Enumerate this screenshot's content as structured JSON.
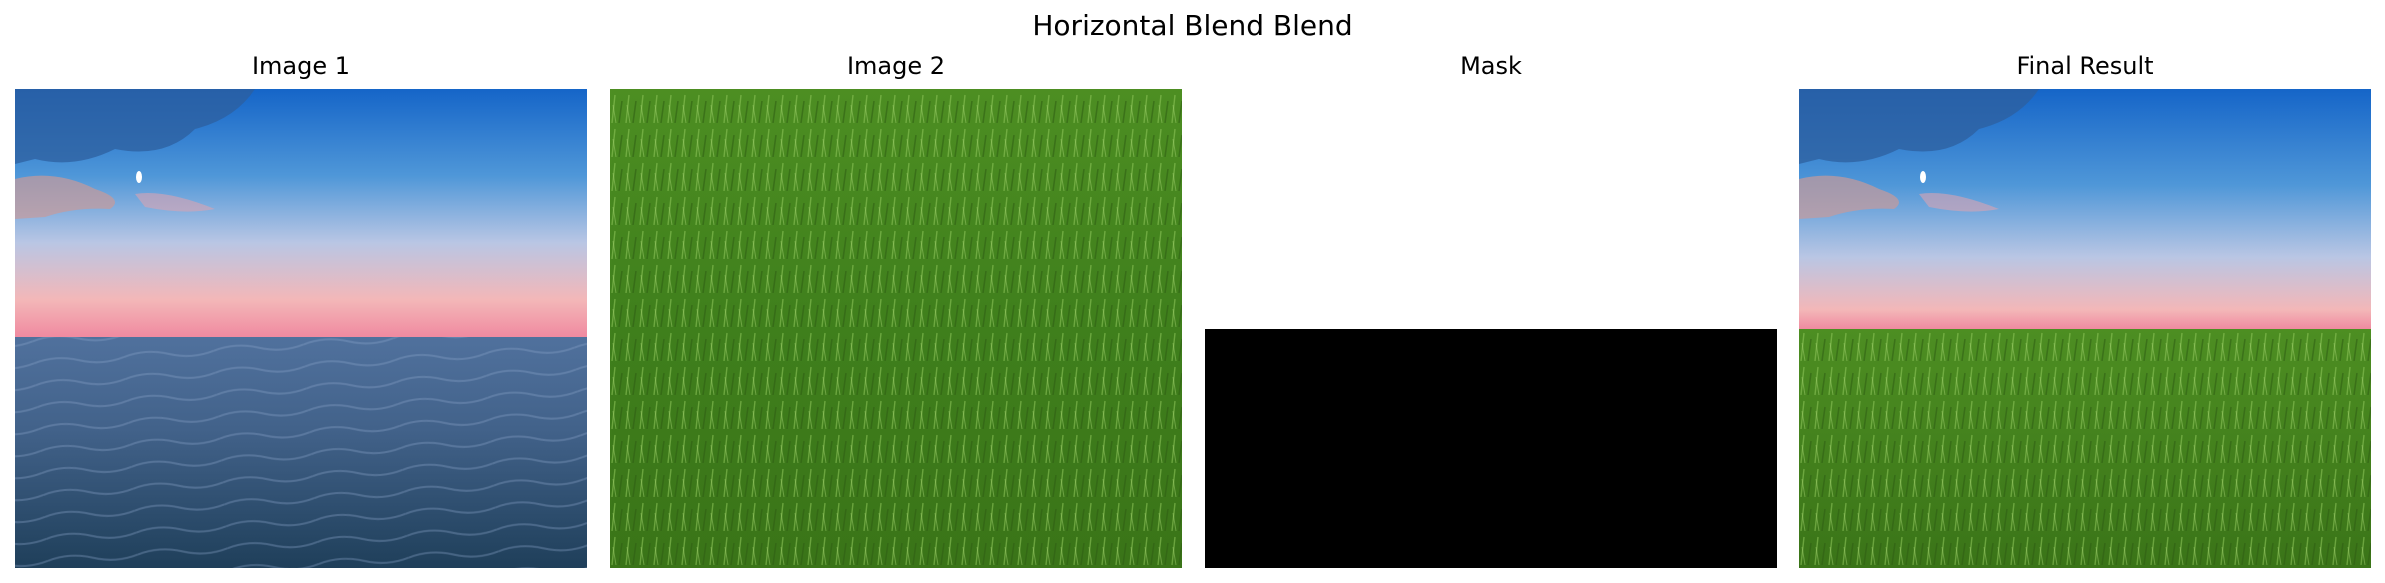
{
  "figure": {
    "title": "Horizontal Blend Blend"
  },
  "panels": [
    {
      "title": "Image 1",
      "content": "sky-sea-photo"
    },
    {
      "title": "Image 2",
      "content": "grass-photo"
    },
    {
      "title": "Mask",
      "content": "binary-mask"
    },
    {
      "title": "Final Result",
      "content": "blended-photo"
    }
  ],
  "colors": {
    "mask_white": "#ffffff",
    "mask_black": "#000000",
    "sky_top": "#1f6fc7",
    "sky_horizon": "#f19aa8",
    "sea": "#3a5f86",
    "grass": "#4f8f24"
  }
}
